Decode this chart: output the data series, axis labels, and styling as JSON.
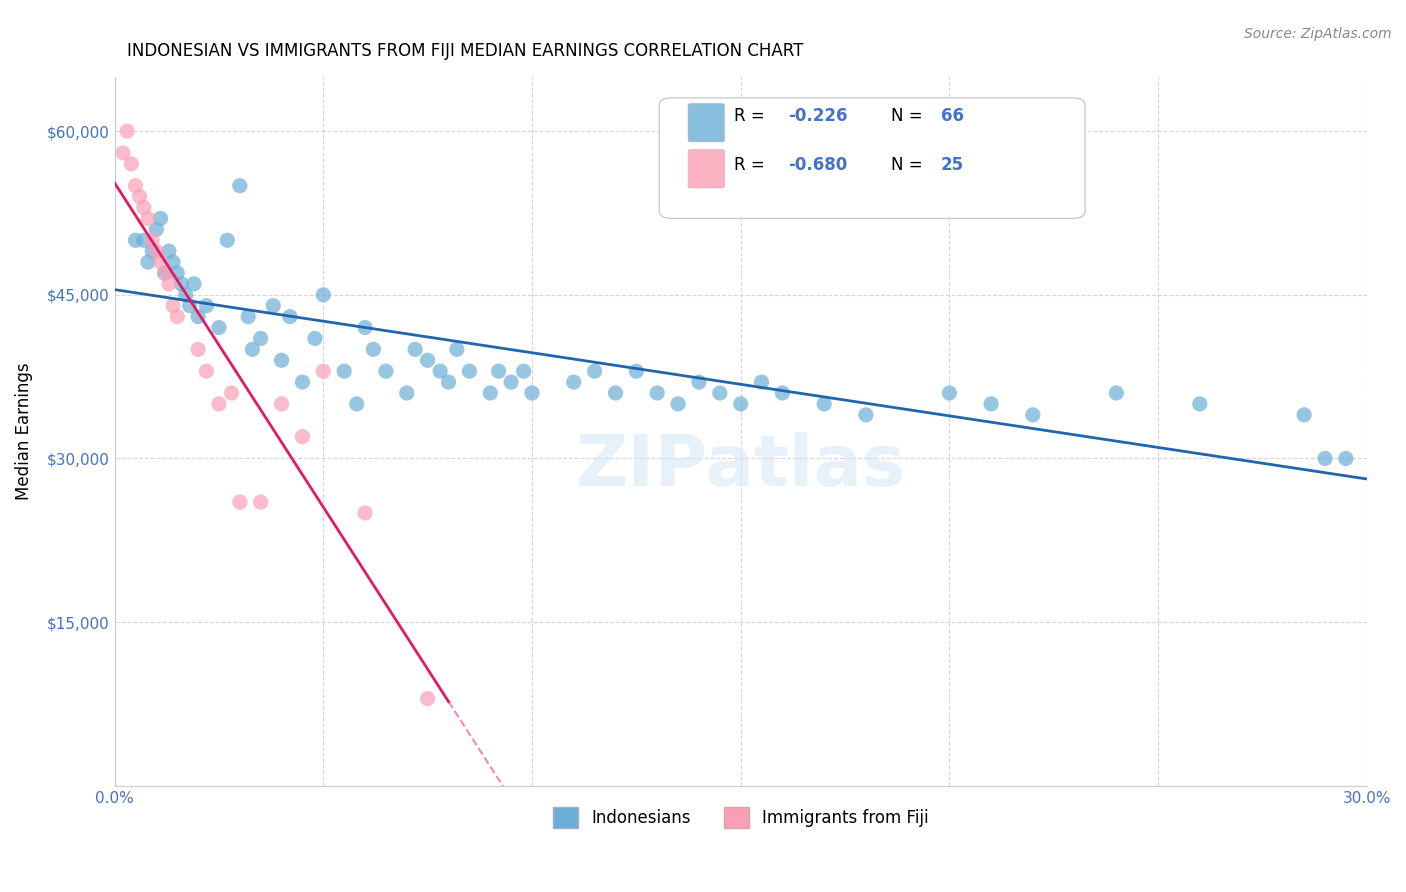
{
  "title": "INDONESIAN VS IMMIGRANTS FROM FIJI MEDIAN EARNINGS CORRELATION CHART",
  "source": "Source: ZipAtlas.com",
  "xlabel_bottom": "",
  "ylabel": "Median Earnings",
  "x_min": 0.0,
  "x_max": 0.3,
  "y_min": 0,
  "y_max": 65000,
  "y_ticks": [
    0,
    15000,
    30000,
    45000,
    60000
  ],
  "y_tick_labels": [
    "",
    "$15,000",
    "$30,000",
    "$45,000",
    "$60,000"
  ],
  "x_ticks": [
    0.0,
    0.05,
    0.1,
    0.15,
    0.2,
    0.25,
    0.3
  ],
  "x_tick_labels": [
    "0.0%",
    "",
    "",
    "",
    "",
    "",
    "30.0%"
  ],
  "legend_r1": "R = -0.226",
  "legend_n1": "N = 66",
  "legend_r2": "R = -0.680",
  "legend_n2": "N = 25",
  "color_blue": "#6baed6",
  "color_pink": "#fa9fb5",
  "color_blue_line": "#2166ac",
  "color_pink_line": "#e31a63",
  "color_axis": "#4472c4",
  "watermark": "ZIPatlas",
  "indonesian_x": [
    0.005,
    0.007,
    0.008,
    0.009,
    0.01,
    0.011,
    0.012,
    0.013,
    0.014,
    0.015,
    0.016,
    0.017,
    0.018,
    0.019,
    0.02,
    0.022,
    0.025,
    0.027,
    0.03,
    0.032,
    0.033,
    0.035,
    0.038,
    0.04,
    0.042,
    0.045,
    0.048,
    0.05,
    0.055,
    0.058,
    0.06,
    0.062,
    0.065,
    0.07,
    0.072,
    0.075,
    0.078,
    0.08,
    0.082,
    0.085,
    0.09,
    0.092,
    0.095,
    0.098,
    0.1,
    0.11,
    0.115,
    0.12,
    0.125,
    0.13,
    0.135,
    0.14,
    0.145,
    0.15,
    0.155,
    0.16,
    0.17,
    0.18,
    0.2,
    0.21,
    0.22,
    0.24,
    0.26,
    0.285,
    0.29,
    0.295
  ],
  "indonesian_y": [
    50000,
    50000,
    48000,
    49000,
    51000,
    52000,
    47000,
    49000,
    48000,
    47000,
    46000,
    45000,
    44000,
    46000,
    43000,
    44000,
    42000,
    50000,
    55000,
    43000,
    40000,
    41000,
    44000,
    39000,
    43000,
    37000,
    41000,
    45000,
    38000,
    35000,
    42000,
    40000,
    38000,
    36000,
    40000,
    39000,
    38000,
    37000,
    40000,
    38000,
    36000,
    38000,
    37000,
    38000,
    36000,
    37000,
    38000,
    36000,
    38000,
    36000,
    35000,
    37000,
    36000,
    35000,
    37000,
    36000,
    35000,
    34000,
    36000,
    35000,
    34000,
    36000,
    35000,
    34000,
    30000,
    30000
  ],
  "fiji_x": [
    0.002,
    0.003,
    0.004,
    0.005,
    0.006,
    0.007,
    0.008,
    0.009,
    0.01,
    0.011,
    0.012,
    0.013,
    0.014,
    0.015,
    0.02,
    0.022,
    0.025,
    0.028,
    0.03,
    0.035,
    0.04,
    0.045,
    0.05,
    0.06,
    0.075
  ],
  "fiji_y": [
    58000,
    60000,
    57000,
    55000,
    54000,
    53000,
    52000,
    50000,
    49000,
    48000,
    47000,
    46000,
    44000,
    43000,
    40000,
    38000,
    35000,
    36000,
    26000,
    26000,
    35000,
    32000,
    38000,
    25000,
    8000
  ]
}
